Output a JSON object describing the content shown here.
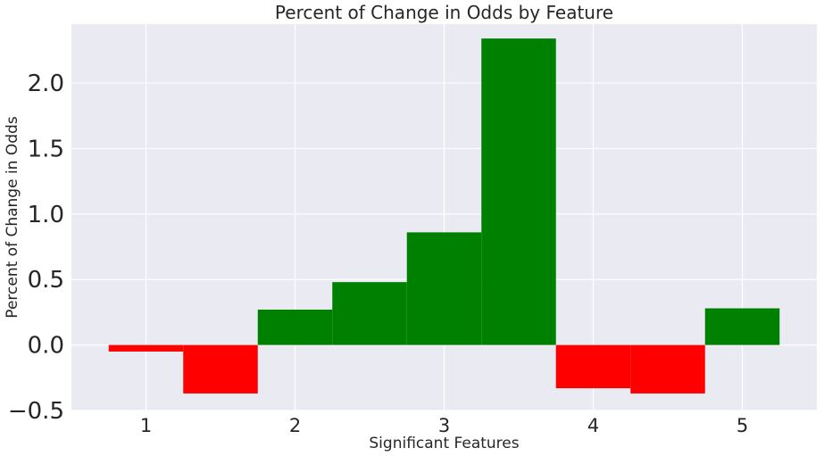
{
  "chart_data": {
    "type": "bar",
    "title": "Percent of Change in Odds by Feature",
    "xlabel": "Significant Features",
    "ylabel": "Percent of Change in Odds",
    "xlim": [
      0.5,
      5.5
    ],
    "ylim": [
      -0.5,
      2.45
    ],
    "xticks": [
      1,
      2,
      3,
      4,
      5
    ],
    "yticks": [
      -0.5,
      0.0,
      0.5,
      1.0,
      1.5,
      2.0
    ],
    "ytick_labels": [
      "−0.5",
      "0.0",
      "0.5",
      "1.0",
      "1.5",
      "2.0"
    ],
    "grid": true,
    "bar_width": 0.5,
    "colors": {
      "positive": "#008000",
      "negative": "#ff0000",
      "background": "#eaeaf2",
      "grid": "#ffffff"
    },
    "bars": [
      {
        "x": 1.0,
        "value": -0.05
      },
      {
        "x": 1.5,
        "value": -0.37
      },
      {
        "x": 2.0,
        "value": 0.27
      },
      {
        "x": 2.5,
        "value": 0.48
      },
      {
        "x": 3.0,
        "value": 0.86
      },
      {
        "x": 3.5,
        "value": 2.34
      },
      {
        "x": 4.0,
        "value": -0.33
      },
      {
        "x": 4.5,
        "value": -0.37
      },
      {
        "x": 5.0,
        "value": 0.28
      }
    ]
  }
}
